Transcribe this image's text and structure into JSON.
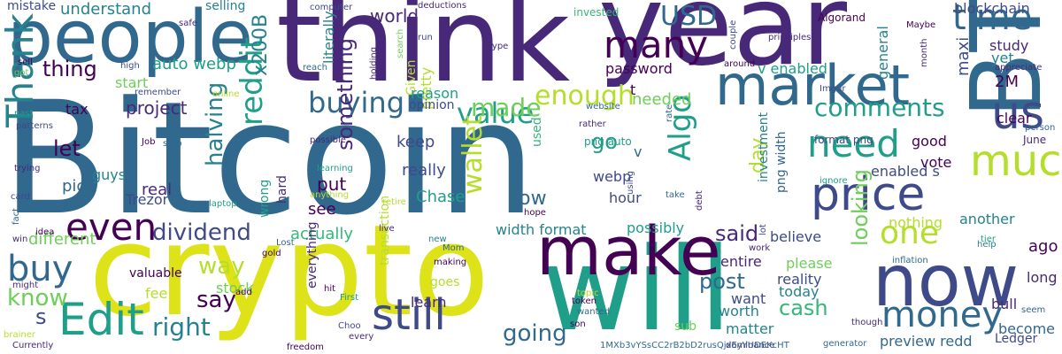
{
  "palette": {
    "purple": "#440154",
    "indigo": "#482878",
    "blue": "#3e4a89",
    "steel": "#31688e",
    "teal": "#26828e",
    "sea": "#1f9e89",
    "green": "#35b779",
    "lime": "#6ece58",
    "chartreuse": "#b5de2b",
    "yellow": "#dde318"
  },
  "words": [
    {
      "text": "Bitcoin",
      "color": "steel"
    },
    {
      "text": "crypto",
      "color": "yellow"
    },
    {
      "text": "think",
      "color": "indigo"
    },
    {
      "text": "year",
      "color": "indigo"
    },
    {
      "text": "people",
      "color": "steel"
    },
    {
      "text": "will",
      "color": "sea"
    },
    {
      "text": "BTC",
      "color": "steel"
    },
    {
      "text": "make",
      "color": "purple"
    },
    {
      "text": "now",
      "color": "blue"
    },
    {
      "text": "market",
      "color": "steel"
    },
    {
      "text": "price",
      "color": "blue"
    },
    {
      "text": "still",
      "color": "blue"
    },
    {
      "text": "Edit",
      "color": "sea"
    },
    {
      "text": "Thank",
      "color": "teal"
    },
    {
      "text": "many",
      "color": "purple"
    },
    {
      "text": "much",
      "color": "chartreuse"
    },
    {
      "text": "money",
      "color": "steel"
    },
    {
      "text": "one",
      "color": "chartreuse"
    },
    {
      "text": "need",
      "color": "sea"
    },
    {
      "text": "us",
      "color": "blue"
    },
    {
      "text": "time",
      "color": "steel"
    },
    {
      "text": "even",
      "color": "purple"
    },
    {
      "text": "buy",
      "color": "steel"
    },
    {
      "text": "value",
      "color": "sea"
    },
    {
      "text": "USD",
      "color": "steel"
    },
    {
      "text": "Algo",
      "color": "sea"
    },
    {
      "text": "reddit",
      "color": "sea"
    },
    {
      "text": "buying",
      "color": "steel"
    },
    {
      "text": "enough",
      "color": "chartreuse"
    },
    {
      "text": "made",
      "color": "lime"
    },
    {
      "text": "wallet",
      "color": "chartreuse"
    },
    {
      "text": "dividend",
      "color": "blue"
    },
    {
      "text": "right",
      "color": "teal"
    },
    {
      "text": "halving",
      "color": "teal"
    },
    {
      "text": "comments",
      "color": "sea"
    },
    {
      "text": "going",
      "color": "steel"
    },
    {
      "text": "know",
      "color": "lime"
    },
    {
      "text": "way",
      "color": "chartreuse"
    },
    {
      "text": "say",
      "color": "purple"
    },
    {
      "text": "thing",
      "color": "purple"
    },
    {
      "text": "something",
      "color": "indigo"
    },
    {
      "text": "said",
      "color": "indigo"
    },
    {
      "text": "cash",
      "color": "green"
    },
    {
      "text": "post",
      "color": "steel"
    },
    {
      "text": "looking",
      "color": "lime"
    },
    {
      "text": "let",
      "color": "purple"
    },
    {
      "text": "go",
      "color": "sea"
    },
    {
      "text": "low",
      "color": "steel"
    },
    {
      "text": "day",
      "color": "chartreuse"
    },
    {
      "text": "x200B",
      "color": "teal"
    },
    {
      "text": "s",
      "color": "blue"
    },
    {
      "text": "project",
      "color": "indigo"
    },
    {
      "text": "auto webp",
      "color": "sea"
    },
    {
      "text": "world",
      "color": "indigo"
    },
    {
      "text": "understand",
      "color": "teal"
    },
    {
      "text": "mistake",
      "color": "blue"
    },
    {
      "text": "selling",
      "color": "teal"
    },
    {
      "text": "literally",
      "color": "teal"
    },
    {
      "text": "pretty",
      "color": "chartreuse"
    },
    {
      "text": "Given",
      "color": "chartreuse"
    },
    {
      "text": "password",
      "color": "purple"
    },
    {
      "text": "v enabled",
      "color": "sea"
    },
    {
      "text": "general",
      "color": "teal"
    },
    {
      "text": "maxi",
      "color": "blue"
    },
    {
      "text": "blockchain",
      "color": "blue"
    },
    {
      "text": "study",
      "color": "indigo"
    },
    {
      "text": "yet",
      "color": "teal"
    },
    {
      "text": "2M",
      "color": "purple"
    },
    {
      "text": "reason",
      "color": "sea"
    },
    {
      "text": "opinion",
      "color": "blue"
    },
    {
      "text": "t",
      "color": "purple"
    },
    {
      "text": "needed",
      "color": "lime"
    },
    {
      "text": "start",
      "color": "lime"
    },
    {
      "text": "tax",
      "color": "purple"
    },
    {
      "text": "different",
      "color": "lime"
    },
    {
      "text": "pick",
      "color": "steel"
    },
    {
      "text": "real",
      "color": "indigo"
    },
    {
      "text": "guys",
      "color": "teal"
    },
    {
      "text": "Trezor",
      "color": "blue"
    },
    {
      "text": "keep",
      "color": "blue"
    },
    {
      "text": "really",
      "color": "blue"
    },
    {
      "text": "put",
      "color": "purple"
    },
    {
      "text": "see",
      "color": "purple"
    },
    {
      "text": "Chase",
      "color": "sea"
    },
    {
      "text": "webp",
      "color": "blue"
    },
    {
      "text": "hour",
      "color": "blue"
    },
    {
      "text": "actually",
      "color": "green"
    },
    {
      "text": "width format",
      "color": "teal"
    },
    {
      "text": "possibly",
      "color": "sea"
    },
    {
      "text": "believe",
      "color": "blue"
    },
    {
      "text": "entire",
      "color": "indigo"
    },
    {
      "text": "please",
      "color": "lime"
    },
    {
      "text": "reality",
      "color": "blue"
    },
    {
      "text": "today",
      "color": "teal"
    },
    {
      "text": "want",
      "color": "blue"
    },
    {
      "text": "worth",
      "color": "teal"
    },
    {
      "text": "sub",
      "color": "lime"
    },
    {
      "text": "matter",
      "color": "teal"
    },
    {
      "text": "preview redd",
      "color": "steel"
    },
    {
      "text": "Ledger",
      "color": "blue"
    },
    {
      "text": "become",
      "color": "steel"
    },
    {
      "text": "bull",
      "color": "indigo"
    },
    {
      "text": "long",
      "color": "indigo"
    },
    {
      "text": "ago",
      "color": "purple"
    },
    {
      "text": "another",
      "color": "teal"
    },
    {
      "text": "vote",
      "color": "purple"
    },
    {
      "text": "good",
      "color": "purple"
    },
    {
      "text": "clear",
      "color": "purple"
    },
    {
      "text": "enabled s",
      "color": "blue"
    },
    {
      "text": "nothing",
      "color": "chartreuse"
    },
    {
      "text": "investment",
      "color": "teal"
    },
    {
      "text": "png width",
      "color": "steel"
    },
    {
      "text": "valuable",
      "color": "purple"
    },
    {
      "text": "stock",
      "color": "lime"
    },
    {
      "text": "fee",
      "color": "chartreuse"
    },
    {
      "text": "transaction",
      "color": "chartreuse"
    },
    {
      "text": "learn",
      "color": "indigo"
    },
    {
      "text": "goes",
      "color": "chartreuse"
    },
    {
      "text": "everything",
      "color": "indigo"
    },
    {
      "text": "hard",
      "color": "indigo"
    },
    {
      "text": "wrong",
      "color": "sea"
    },
    {
      "text": "used",
      "color": "green"
    },
    {
      "text": "format png",
      "color": "blue"
    },
    {
      "text": "June",
      "color": "indigo"
    },
    {
      "text": "person",
      "color": "steel"
    },
    {
      "text": "ignore",
      "color": "sea"
    },
    {
      "text": "inflation",
      "color": "steel"
    },
    {
      "text": "tier",
      "color": "sea"
    },
    {
      "text": "help",
      "color": "teal"
    },
    {
      "text": "seem",
      "color": "steel"
    },
    {
      "text": "though",
      "color": "indigo"
    },
    {
      "text": "generator",
      "color": "steel"
    },
    {
      "text": "dominance",
      "color": "indigo"
    },
    {
      "text": "lot",
      "color": "blue"
    },
    {
      "text": "work",
      "color": "indigo"
    },
    {
      "text": "Imgur",
      "color": "blue"
    },
    {
      "text": "rate",
      "color": "steel"
    },
    {
      "text": "rather",
      "color": "indigo"
    },
    {
      "text": "png auto",
      "color": "sea"
    },
    {
      "text": "v",
      "color": "steel"
    },
    {
      "text": "using",
      "color": "blue"
    },
    {
      "text": "take",
      "color": "steel"
    },
    {
      "text": "debt",
      "color": "indigo"
    },
    {
      "text": "hope",
      "color": "purple"
    },
    {
      "text": "website",
      "color": "steel"
    },
    {
      "text": "invested",
      "color": "green"
    },
    {
      "text": "computer",
      "color": "blue"
    },
    {
      "text": "deductions",
      "color": "indigo"
    },
    {
      "text": "Algorand",
      "color": "purple"
    },
    {
      "text": "Maybe",
      "color": "purple"
    },
    {
      "text": "couple",
      "color": "blue"
    },
    {
      "text": "principles",
      "color": "indigo"
    },
    {
      "text": "around",
      "color": "purple"
    },
    {
      "text": "month",
      "color": "indigo"
    },
    {
      "text": "appreciate",
      "color": "indigo"
    },
    {
      "text": "run",
      "color": "blue"
    },
    {
      "text": "type",
      "color": "indigo"
    },
    {
      "text": "reach",
      "color": "steel"
    },
    {
      "text": "search",
      "color": "lime"
    },
    {
      "text": "holding",
      "color": "indigo"
    },
    {
      "text": "safe",
      "color": "indigo"
    },
    {
      "text": "sell",
      "color": "purple"
    },
    {
      "text": "got",
      "color": "lime"
    },
    {
      "text": "high",
      "color": "blue"
    },
    {
      "text": "remember",
      "color": "blue"
    },
    {
      "text": "online",
      "color": "chartreuse"
    },
    {
      "text": "past",
      "color": "sea"
    },
    {
      "text": "patterns",
      "color": "blue"
    },
    {
      "text": "Job",
      "color": "purple"
    },
    {
      "text": "stop",
      "color": "steel"
    },
    {
      "text": "trying",
      "color": "indigo"
    },
    {
      "text": "card",
      "color": "blue"
    },
    {
      "text": "anything",
      "color": "chartreuse"
    },
    {
      "text": "learning",
      "color": "sea"
    },
    {
      "text": "possible",
      "color": "indigo"
    },
    {
      "text": "laptop",
      "color": "sea"
    },
    {
      "text": "retire",
      "color": "chartreuse"
    },
    {
      "text": "idea",
      "color": "purple"
    },
    {
      "text": "fact",
      "color": "steel"
    },
    {
      "text": "win",
      "color": "indigo"
    },
    {
      "text": "gold",
      "color": "purple"
    },
    {
      "text": "Lost",
      "color": "steel"
    },
    {
      "text": "live",
      "color": "indigo"
    },
    {
      "text": "new",
      "color": "teal"
    },
    {
      "text": "Mom",
      "color": "steel"
    },
    {
      "text": "making",
      "color": "purple"
    },
    {
      "text": "might",
      "color": "indigo"
    },
    {
      "text": "add",
      "color": "purple"
    },
    {
      "text": "hit",
      "color": "purple"
    },
    {
      "text": "First",
      "color": "sea"
    },
    {
      "text": "topic",
      "color": "chartreuse"
    },
    {
      "text": "token",
      "color": "purple"
    },
    {
      "text": "wanted",
      "color": "steel"
    },
    {
      "text": "son",
      "color": "purple"
    },
    {
      "text": "brainer",
      "color": "chartreuse"
    },
    {
      "text": "Currently",
      "color": "indigo"
    },
    {
      "text": "freedom",
      "color": "purple"
    },
    {
      "text": "Choo",
      "color": "blue"
    },
    {
      "text": "every",
      "color": "indigo"
    },
    {
      "text": "1MXb3vYSsCC2rB2bD2rusQjxEyYUDEKcHT",
      "color": "steel"
    }
  ]
}
